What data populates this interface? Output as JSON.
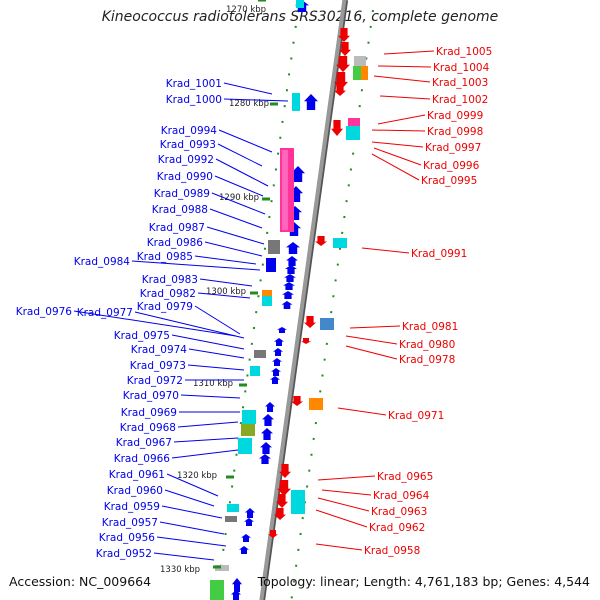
{
  "title": "Kineococcus radiotolerans SRS30216, complete genome",
  "top_tick": "1270 kbp",
  "kbp_ticks": [
    "1280 kbp",
    "1290 kbp",
    "1300 kbp",
    "1310 kbp",
    "1320 kbp",
    "1330 kbp"
  ],
  "left_labels": [
    "Krad_1001",
    "Krad_1000",
    "Krad_0994",
    "Krad_0993",
    "Krad_0992",
    "Krad_0990",
    "Krad_0989",
    "Krad_0988",
    "Krad_0987",
    "Krad_0986",
    "Krad_0984",
    "Krad_0985",
    "Krad_0983",
    "Krad_0982",
    "Krad_0979",
    "Krad_0976",
    "Krad_0977",
    "Krad_0975",
    "Krad_0974",
    "Krad_0973",
    "Krad_0972",
    "Krad_0970",
    "Krad_0969",
    "Krad_0968",
    "Krad_0967",
    "Krad_0966",
    "Krad_0961",
    "Krad_0960",
    "Krad_0959",
    "Krad_0957",
    "Krad_0956",
    "Krad_0952"
  ],
  "right_labels": [
    "Krad_1005",
    "Krad_1004",
    "Krad_1003",
    "Krad_1002",
    "Krad_0999",
    "Krad_0998",
    "Krad_0997",
    "Krad_0996",
    "Krad_0995",
    "Krad_0991",
    "Krad_0981",
    "Krad_0980",
    "Krad_0978",
    "Krad_0971",
    "Krad_0965",
    "Krad_0964",
    "Krad_0963",
    "Krad_0962",
    "Krad_0958"
  ],
  "accession": "Accession: NC_009664",
  "summary": "Topology: linear; Length: 4,761,183 bp; Genes: 4,544",
  "colors": {
    "forward_strand": "#0000ee",
    "reverse_strand": "#ee0000",
    "backbone": "#999999",
    "tick": "#228B22",
    "highlights": [
      "#00d8e0",
      "#ff3399",
      "#ff8800",
      "#44cc44",
      "#777777"
    ]
  }
}
